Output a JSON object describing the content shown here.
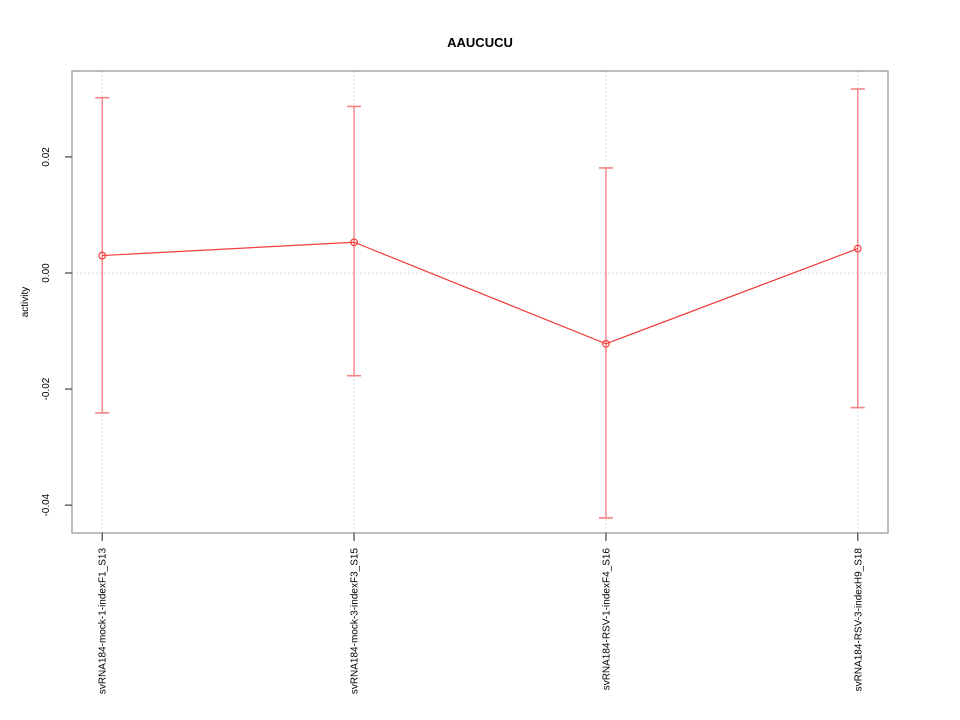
{
  "window": {
    "background": "#ffffff"
  },
  "chart_data": {
    "type": "line",
    "title": "AAUCUCU",
    "xlabel": "",
    "ylabel": "activity",
    "categories": [
      "svRNA184-mock-1-indexF1_S13",
      "svRNA184-mock-3-indexF3_S15",
      "svRNA184-RSV-1-indexF4_S16",
      "svRNA184-RSV-3-indexH9_S18"
    ],
    "x_positions": [
      1,
      2,
      3,
      4
    ],
    "series": [
      {
        "name": "activity",
        "values": [
          0.003,
          0.0053,
          -0.0122,
          0.0042
        ],
        "error_high": [
          0.0302,
          0.0287,
          0.0181,
          0.0317
        ],
        "error_low": [
          -0.0241,
          -0.0177,
          -0.0422,
          -0.0232
        ]
      }
    ],
    "xlim": [
      0.88,
      4.12
    ],
    "ylim": [
      -0.0448,
      0.0348
    ],
    "yticks": [
      {
        "value": 0.02,
        "label": "0.02"
      },
      {
        "value": 0.0,
        "label": "0.00"
      },
      {
        "value": -0.02,
        "label": "-0.02"
      },
      {
        "value": -0.04,
        "label": "-0.04"
      }
    ],
    "grid": {
      "horizontal_zero_line": true,
      "vertical_guides": true,
      "line_style": "dotted"
    },
    "legend": "none",
    "point_style": "open-circle",
    "colors": {
      "series": "#f23d3d",
      "error_bar": "#f58282",
      "grid": "#cfcfcf",
      "frame": "#999999",
      "tick": "#444444",
      "text": "#000000"
    }
  }
}
